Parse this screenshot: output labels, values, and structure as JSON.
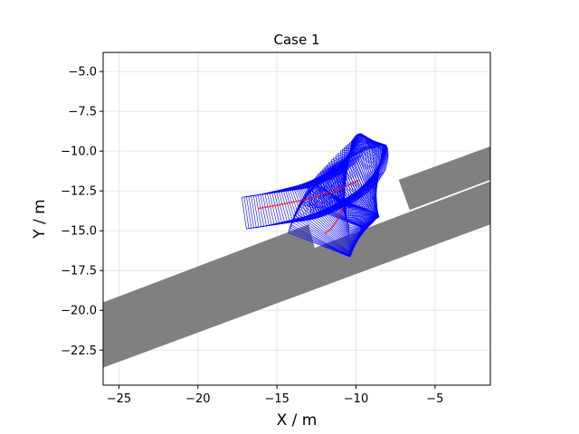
{
  "chart_data": {
    "type": "scatter",
    "title": "Case 1",
    "xlabel": "X / m",
    "ylabel": "Y / m",
    "xlim": [
      -26.0,
      -1.5
    ],
    "ylim": [
      -24.7,
      -3.8
    ],
    "grid": true,
    "x_ticks": [
      -25,
      -20,
      -15,
      -10,
      -5
    ],
    "x_tick_labels": [
      "−25",
      "−20",
      "−15",
      "−10",
      "−5"
    ],
    "y_ticks": [
      -5.0,
      -7.5,
      -10.0,
      -12.5,
      -15.0,
      -17.5,
      -20.0,
      -22.5
    ],
    "y_tick_labels": [
      "−5.0",
      "−7.5",
      "−10.0",
      "−12.5",
      "−15.0",
      "−17.5",
      "−20.0",
      "−22.5"
    ],
    "obstacles": [
      {
        "name": "lower-road-strip",
        "polygon": [
          [
            -26.0,
            -23.6
          ],
          [
            -1.5,
            -14.6
          ],
          [
            -1.5,
            -11.9
          ],
          [
            -26.0,
            -21.1
          ]
        ]
      },
      {
        "name": "upper-left-road-strip",
        "polygon": [
          [
            -26.0,
            -21.4
          ],
          [
            -12.5,
            -16.5
          ],
          [
            -13.0,
            -14.6
          ],
          [
            -26.0,
            -19.5
          ]
        ]
      },
      {
        "name": "upper-right-road-strip",
        "polygon": [
          [
            -6.6,
            -13.7
          ],
          [
            -1.5,
            -11.8
          ],
          [
            -1.5,
            -9.7
          ],
          [
            -7.3,
            -11.8
          ]
        ]
      }
    ],
    "vehicle_poses": [
      {
        "x": -15.0,
        "y": -13.6,
        "theta_deg": 8
      },
      {
        "x": -14.1,
        "y": -13.4,
        "theta_deg": 10
      },
      {
        "x": -13.2,
        "y": -13.1,
        "theta_deg": 13
      },
      {
        "x": -12.3,
        "y": -12.8,
        "theta_deg": 17
      },
      {
        "x": -11.5,
        "y": -12.4,
        "theta_deg": 22
      },
      {
        "x": -10.9,
        "y": -12.0,
        "theta_deg": 28
      },
      {
        "x": -10.4,
        "y": -11.6,
        "theta_deg": 36
      },
      {
        "x": -10.1,
        "y": -11.3,
        "theta_deg": 48
      },
      {
        "x": -9.9,
        "y": -11.2,
        "theta_deg": 60
      },
      {
        "x": -9.7,
        "y": -11.3,
        "theta_deg": 72
      },
      {
        "x": -9.6,
        "y": -11.6,
        "theta_deg": 82
      },
      {
        "x": -9.8,
        "y": -12.0,
        "theta_deg": 95
      },
      {
        "x": -10.2,
        "y": -12.5,
        "theta_deg": 110
      },
      {
        "x": -10.7,
        "y": -13.0,
        "theta_deg": 122
      },
      {
        "x": -11.1,
        "y": -13.6,
        "theta_deg": 132
      },
      {
        "x": -11.5,
        "y": -14.2,
        "theta_deg": 142
      },
      {
        "x": -11.8,
        "y": -14.7,
        "theta_deg": 152
      },
      {
        "x": -12.0,
        "y": -15.0,
        "theta_deg": 160
      }
    ],
    "vehicle_length_m": 4.2,
    "vehicle_width_m": 2.0,
    "path_forward": {
      "name": "reference-path-forward",
      "x": [
        -16.2,
        -15.0,
        -14.0,
        -13.0,
        -12.0,
        -11.0,
        -10.2,
        -9.8
      ],
      "y": [
        -13.6,
        -13.4,
        -13.2,
        -13.0,
        -12.7,
        -12.4,
        -12.0,
        -11.8
      ]
    },
    "path_reverse": {
      "name": "reference-path-reverse",
      "x": [
        -10.8,
        -11.0,
        -11.3,
        -11.6,
        -12.0
      ],
      "y": [
        -13.5,
        -14.0,
        -14.5,
        -14.9,
        -15.2
      ]
    },
    "colors": {
      "obstacle": "#808080",
      "vehicle": "#0000ff",
      "path": "#ff0000",
      "grid": "#e6e6e6"
    }
  }
}
